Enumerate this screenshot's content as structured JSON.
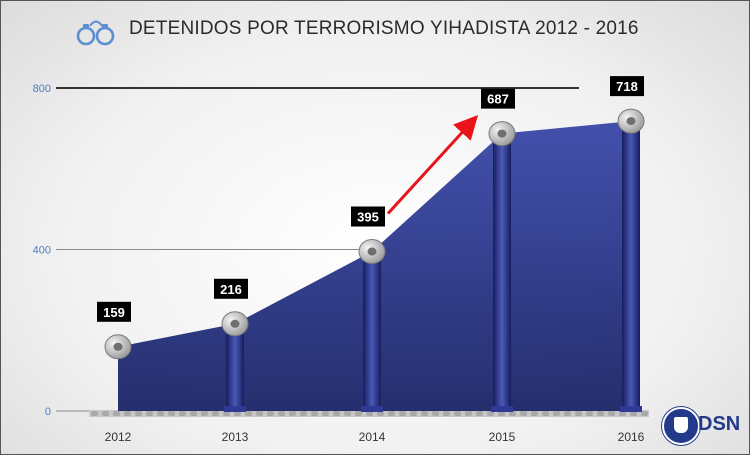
{
  "header": {
    "title": "DETENIDOS POR TERRORISMO YIHADISTA 2012 - 2016",
    "icon": "handcuffs-icon"
  },
  "logo": {
    "text": "DSN",
    "icon": "dsn-seal-icon"
  },
  "colors": {
    "area": "#283485",
    "area_light": "#3a48a8",
    "column": "#1f2a78",
    "arrow": "#e8141a",
    "label_bg": "#000000",
    "tick_text": "#4a7fc1",
    "gridline": "#555555"
  },
  "chart_data": {
    "type": "area",
    "title": "DETENIDOS POR TERRORISMO YIHADISTA 2012 - 2016",
    "xlabel": "",
    "ylabel": "",
    "categories": [
      "2012",
      "2013",
      "2014",
      "2015",
      "2016"
    ],
    "values": [
      159,
      216,
      395,
      687,
      718
    ],
    "data_labels": [
      "159",
      "216",
      "395",
      "687",
      "718"
    ],
    "y_ticks": [
      "0",
      "400",
      "800"
    ],
    "ylim": [
      0,
      800
    ],
    "grid": true,
    "legend": "none",
    "annotations": [
      {
        "type": "arrow",
        "from_category": "2014",
        "to_category": "2015",
        "color": "red"
      }
    ]
  }
}
